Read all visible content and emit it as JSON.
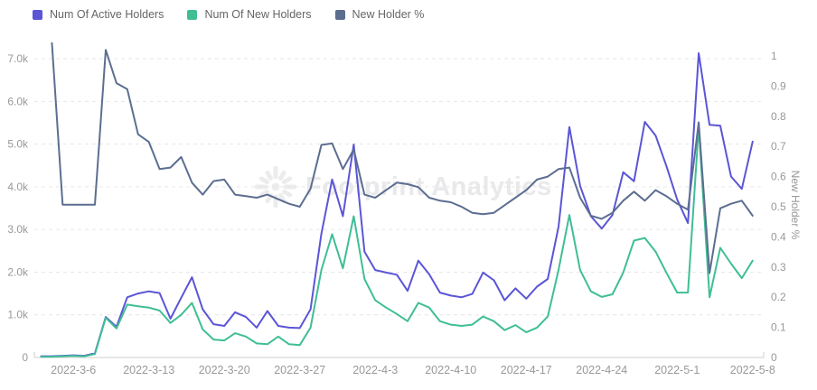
{
  "legend": {
    "items": [
      {
        "label": "Num Of Active Holders",
        "color": "#5B55D6"
      },
      {
        "label": "Num Of New Holders",
        "color": "#3FBE96"
      },
      {
        "label": "New Holder %",
        "color": "#5C6E90"
      }
    ]
  },
  "watermark": {
    "text": "Footprint Analytics"
  },
  "chart_data": {
    "type": "line",
    "title": "",
    "x": [
      "2022-3-3",
      "2022-3-4",
      "2022-3-5",
      "2022-3-6",
      "2022-3-7",
      "2022-3-8",
      "2022-3-9",
      "2022-3-10",
      "2022-3-11",
      "2022-3-12",
      "2022-3-13",
      "2022-3-14",
      "2022-3-15",
      "2022-3-16",
      "2022-3-17",
      "2022-3-18",
      "2022-3-19",
      "2022-3-20",
      "2022-3-21",
      "2022-3-22",
      "2022-3-23",
      "2022-3-24",
      "2022-3-25",
      "2022-3-26",
      "2022-3-27",
      "2022-3-28",
      "2022-3-29",
      "2022-3-30",
      "2022-3-31",
      "2022-4-1",
      "2022-4-2",
      "2022-4-3",
      "2022-4-4",
      "2022-4-5",
      "2022-4-6",
      "2022-4-7",
      "2022-4-8",
      "2022-4-9",
      "2022-4-10",
      "2022-4-11",
      "2022-4-12",
      "2022-4-13",
      "2022-4-14",
      "2022-4-15",
      "2022-4-16",
      "2022-4-17",
      "2022-4-18",
      "2022-4-19",
      "2022-4-20",
      "2022-4-21",
      "2022-4-22",
      "2022-4-23",
      "2022-4-24",
      "2022-4-25",
      "2022-4-26",
      "2022-4-27",
      "2022-4-28",
      "2022-4-29",
      "2022-4-30",
      "2022-5-1",
      "2022-5-2",
      "2022-5-3",
      "2022-5-4",
      "2022-5-5",
      "2022-5-6",
      "2022-5-7",
      "2022-5-8"
    ],
    "x_tick_labels": [
      "2022-3-6",
      "2022-3-13",
      "2022-3-20",
      "2022-3-27",
      "2022-4-3",
      "2022-4-10",
      "2022-4-17",
      "2022-4-24",
      "2022-5-1",
      "2022-5-8"
    ],
    "x_tick_indices": [
      3,
      10,
      17,
      24,
      31,
      38,
      45,
      52,
      59,
      66
    ],
    "series": [
      {
        "name": "Num Of Active Holders",
        "axis": "left",
        "color": "#5B55D6",
        "values": [
          30,
          30,
          40,
          50,
          40,
          100,
          950,
          720,
          1410,
          1500,
          1550,
          1510,
          910,
          1400,
          1880,
          1130,
          780,
          740,
          1060,
          950,
          700,
          1090,
          740,
          700,
          690,
          1130,
          2900,
          4170,
          3310,
          4990,
          2480,
          2050,
          1990,
          1940,
          1560,
          2270,
          1950,
          1520,
          1450,
          1410,
          1490,
          1990,
          1810,
          1340,
          1620,
          1380,
          1660,
          1840,
          3060,
          5400,
          4020,
          3310,
          3020,
          3340,
          4340,
          4130,
          5520,
          5200,
          4490,
          3700,
          3150,
          7130,
          5450,
          5430,
          4240,
          3950,
          5060
        ]
      },
      {
        "name": "Num Of New Holders",
        "axis": "left",
        "color": "#3FBE96",
        "values": [
          20,
          20,
          30,
          40,
          30,
          80,
          930,
          680,
          1240,
          1200,
          1170,
          1100,
          810,
          1000,
          1280,
          660,
          420,
          400,
          570,
          490,
          330,
          310,
          490,
          310,
          290,
          700,
          2050,
          2890,
          2090,
          3310,
          1840,
          1340,
          1170,
          1020,
          850,
          1280,
          1170,
          850,
          770,
          740,
          770,
          960,
          850,
          640,
          760,
          590,
          700,
          960,
          2050,
          3340,
          2050,
          1550,
          1420,
          1480,
          1990,
          2740,
          2800,
          2480,
          1990,
          1520,
          1520,
          5410,
          1410,
          2570,
          2200,
          1860,
          2270
        ]
      },
      {
        "name": "New Holder %",
        "axis": "right",
        "color": "#5C6E90",
        "values": [
          1.3,
          1.05,
          0.507,
          0.507,
          0.507,
          0.507,
          1.02,
          0.91,
          0.89,
          0.74,
          0.715,
          0.625,
          0.63,
          0.665,
          0.58,
          0.54,
          0.585,
          0.59,
          0.54,
          0.535,
          0.53,
          0.54,
          0.525,
          0.51,
          0.5,
          0.56,
          0.705,
          0.71,
          0.625,
          0.69,
          0.54,
          0.53,
          0.555,
          0.58,
          0.575,
          0.565,
          0.53,
          0.52,
          0.515,
          0.5,
          0.48,
          0.475,
          0.48,
          0.505,
          0.53,
          0.555,
          0.59,
          0.6,
          0.625,
          0.63,
          0.53,
          0.47,
          0.46,
          0.48,
          0.52,
          0.55,
          0.52,
          0.555,
          0.535,
          0.51,
          0.49,
          0.78,
          0.28,
          0.495,
          0.51,
          0.52,
          0.47
        ]
      }
    ],
    "y_axis_left": {
      "ticks": [
        "0",
        "1.0k",
        "2.0k",
        "3.0k",
        "4.0k",
        "5.0k",
        "6.0k",
        "7.0k"
      ],
      "tick_step": 1000,
      "max_visible": 7360
    },
    "y_axis_right": {
      "title": "New Holder %",
      "ticks": [
        "0",
        "0.1",
        "0.2",
        "0.3",
        "0.4",
        "0.5",
        "0.6",
        "0.7",
        "0.8",
        "0.9",
        "1"
      ],
      "tick_step": 0.1,
      "max_visible": 1.04
    },
    "grid": true,
    "legend_position": "top-left"
  }
}
